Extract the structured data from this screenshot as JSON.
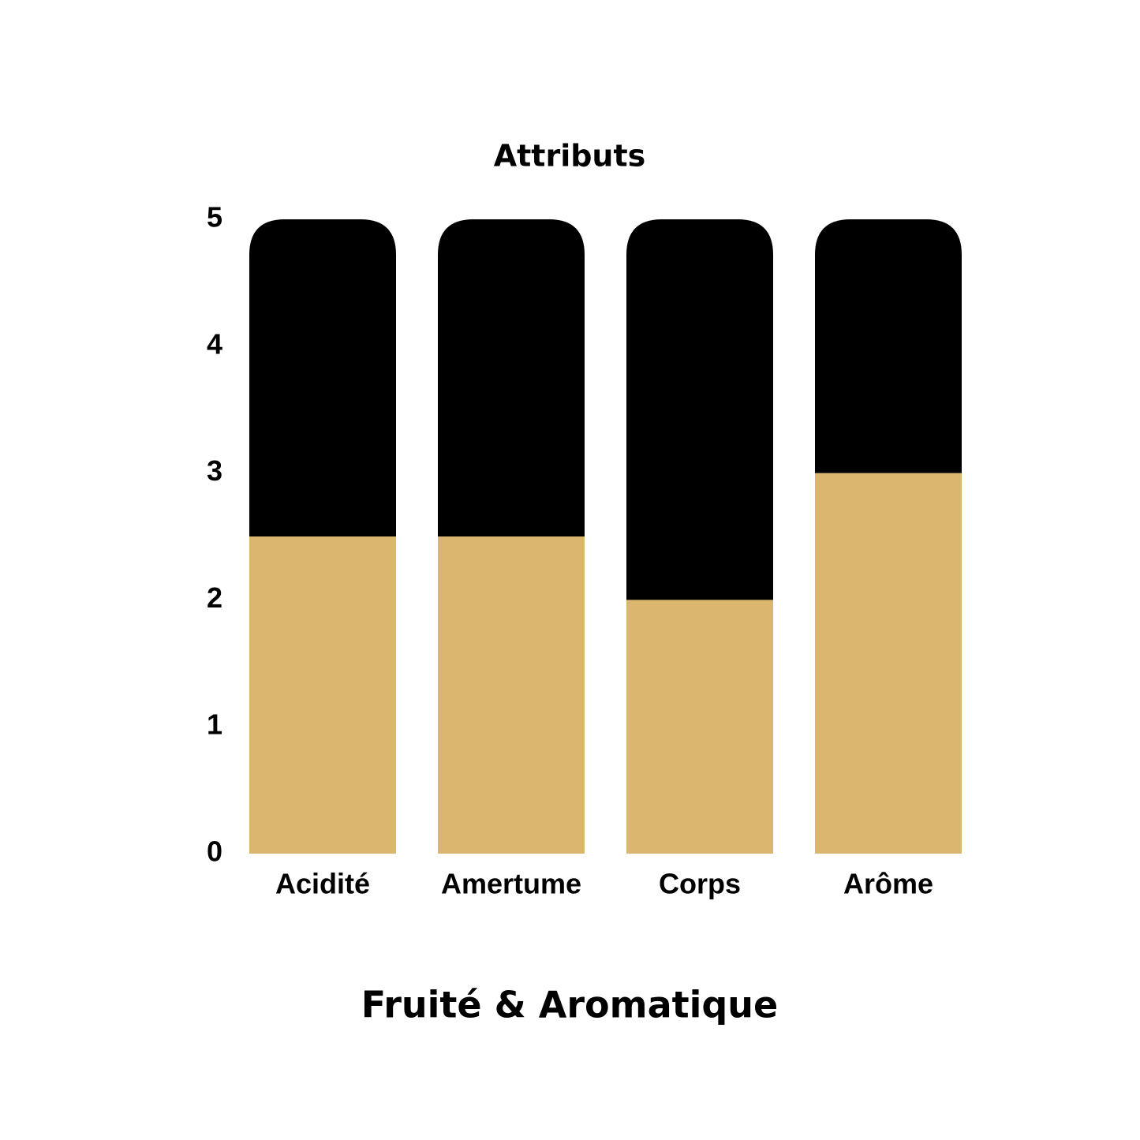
{
  "chart_data": {
    "type": "stacked_bar",
    "title": "Attributs",
    "subtitle": "Fruité & Aromatique",
    "categories": [
      "Acidité",
      "Amertume",
      "Corps",
      "Arôme"
    ],
    "series": [
      {
        "color": "#dbb66e",
        "values": [
          2.5,
          2.5,
          2,
          3
        ]
      },
      {
        "color": "#000000",
        "values": [
          2.5,
          2.5,
          3,
          2
        ]
      }
    ],
    "ylim": [
      0,
      5
    ],
    "yticks": [
      0,
      1,
      2,
      3,
      4,
      5
    ]
  }
}
